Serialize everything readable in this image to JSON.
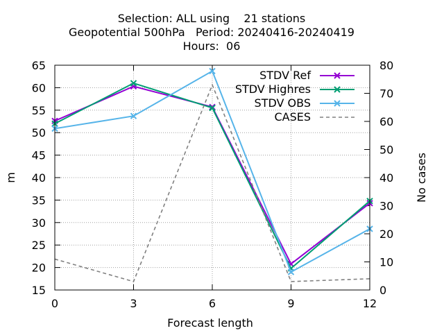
{
  "chart_data": {
    "type": "line",
    "title_lines": [
      "Selection: ALL using    21 stations",
      "Geopotential 500hPa   Period: 20240416-20240419",
      "Hours:  06"
    ],
    "xlabel": "Forecast length",
    "ylabel": "m",
    "y2label": "No cases",
    "x": [
      0,
      3,
      6,
      9,
      12
    ],
    "xlim": [
      0,
      12
    ],
    "xticks": [
      "0",
      "3",
      "6",
      "9",
      "12"
    ],
    "ylim": [
      15,
      65
    ],
    "yticks": [
      "15",
      "20",
      "25",
      "30",
      "35",
      "40",
      "45",
      "50",
      "55",
      "60",
      "65"
    ],
    "y2lim": [
      0,
      80
    ],
    "y2ticks": [
      "0",
      "10",
      "20",
      "30",
      "40",
      "50",
      "60",
      "70",
      "80"
    ],
    "grid": true,
    "legend_position": "top-right",
    "series": [
      {
        "name": "STDV Ref",
        "axis": "left",
        "color": "#9400d3",
        "style": "solid",
        "marker": "x",
        "values": [
          52.6,
          60.3,
          55.7,
          20.8,
          34.3
        ]
      },
      {
        "name": "STDV Highres",
        "axis": "left",
        "color": "#009e73",
        "style": "solid",
        "marker": "x",
        "values": [
          52.0,
          61.0,
          55.5,
          19.8,
          34.8
        ]
      },
      {
        "name": "STDV OBS",
        "axis": "left",
        "color": "#56b4e9",
        "style": "solid",
        "marker": "x",
        "values": [
          50.9,
          53.7,
          63.7,
          19.0,
          28.6
        ]
      },
      {
        "name": "CASES",
        "axis": "right",
        "color": "#808080",
        "style": "dashed",
        "marker": "none",
        "values": [
          11,
          3,
          73,
          3,
          4
        ]
      }
    ]
  }
}
